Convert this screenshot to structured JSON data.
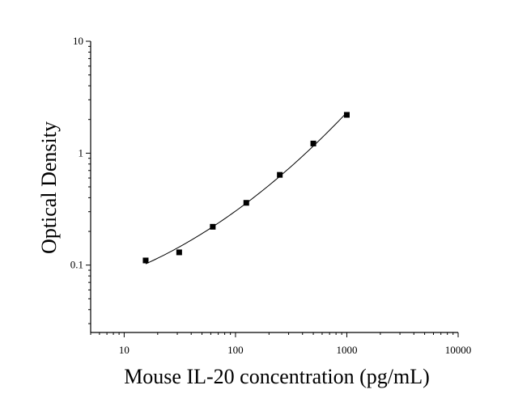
{
  "chart_data": {
    "type": "scatter",
    "title": "",
    "xlabel": "Mouse IL-20 concentration (pg/mL)",
    "ylabel": "Optical Density",
    "xscale": "log",
    "yscale": "log",
    "xlim": [
      5,
      10000
    ],
    "ylim": [
      0.025,
      10
    ],
    "x_ticks": [
      10,
      100,
      1000,
      10000
    ],
    "x_tick_labels": [
      "10",
      "100",
      "1000",
      "10000"
    ],
    "y_ticks": [
      0.1,
      1,
      10
    ],
    "y_tick_labels": [
      "0.1",
      "1",
      "10"
    ],
    "grid": false,
    "legend": "none",
    "series": [
      {
        "marker": "square",
        "color": "#000000",
        "x": [
          15.6,
          31.2,
          62.5,
          125,
          250,
          500,
          1000
        ],
        "y": [
          0.11,
          0.13,
          0.22,
          0.36,
          0.64,
          1.22,
          2.2
        ]
      }
    ],
    "fit_curve": true
  }
}
